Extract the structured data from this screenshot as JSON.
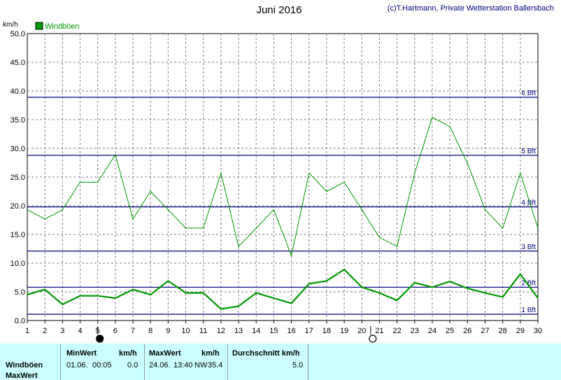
{
  "header": {
    "title": "Juni 2016",
    "copyright": "(c)T.Hartmann, Private Wetterstation Ballersbach"
  },
  "colors": {
    "series": "#009900",
    "bft_lines": "#000080",
    "grid": "#808080",
    "footer_bg": "#ccffff"
  },
  "chart_data": {
    "type": "line",
    "title": "Juni 2016",
    "ylabel": "km/h",
    "xlabel": "",
    "xlim": [
      1,
      30
    ],
    "ylim": [
      0,
      50
    ],
    "x_ticks": [
      1,
      2,
      3,
      4,
      5,
      6,
      7,
      8,
      9,
      10,
      11,
      12,
      13,
      14,
      15,
      16,
      17,
      18,
      19,
      20,
      21,
      22,
      23,
      24,
      25,
      26,
      27,
      28,
      29,
      30
    ],
    "y_ticks": [
      0,
      5,
      10,
      15,
      20,
      25,
      30,
      35,
      40,
      45,
      50
    ],
    "y_tick_labels": [
      "0.0",
      "5.0",
      "10.0",
      "15.0",
      "20.0",
      "25.0",
      "30.0",
      "35.0",
      "40.0",
      "45.0",
      "50.0"
    ],
    "grid": true,
    "legend_position": "top-left",
    "series": [
      {
        "name": "Windböen",
        "kind": "max",
        "x": [
          1,
          2,
          3,
          4,
          5,
          6,
          7,
          8,
          9,
          10,
          11,
          12,
          13,
          14,
          15,
          16,
          17,
          18,
          19,
          20,
          21,
          22,
          23,
          24,
          25,
          26,
          27,
          28,
          29,
          30
        ],
        "values": [
          19.3,
          17.7,
          19.3,
          24.1,
          24.1,
          28.9,
          17.7,
          22.5,
          19.3,
          16.1,
          16.1,
          25.7,
          12.9,
          16.1,
          19.3,
          11.3,
          25.7,
          22.5,
          24.1,
          19.3,
          14.5,
          12.9,
          25.7,
          35.4,
          33.8,
          27.4,
          19.3,
          16.1,
          25.7,
          16.1
        ]
      },
      {
        "name": "Windböen",
        "kind": "mean",
        "x": [
          1,
          2,
          3,
          4,
          5,
          6,
          7,
          8,
          9,
          10,
          11,
          12,
          13,
          14,
          15,
          16,
          17,
          18,
          19,
          20,
          21,
          22,
          23,
          24,
          25,
          26,
          27,
          28,
          29,
          30
        ],
        "values": [
          4.5,
          5.4,
          2.8,
          4.3,
          4.3,
          3.9,
          5.4,
          4.5,
          6.9,
          4.8,
          4.8,
          2.0,
          2.5,
          4.8,
          3.9,
          3.0,
          6.4,
          6.9,
          8.9,
          5.8,
          4.8,
          3.5,
          6.6,
          5.8,
          6.8,
          5.6,
          4.8,
          4.1,
          8.1,
          3.9
        ]
      }
    ],
    "reference_lines": [
      {
        "label": "1 Bft",
        "value": 1.1
      },
      {
        "label": "2 Bft",
        "value": 5.8
      },
      {
        "label": "3 Bft",
        "value": 12.1
      },
      {
        "label": "4 Bft",
        "value": 19.8
      },
      {
        "label": "5 Bft",
        "value": 28.8
      },
      {
        "label": "6 Bft",
        "value": 38.9
      }
    ],
    "moon_phases": [
      {
        "day": 5,
        "phase": "new"
      },
      {
        "day": 20.5,
        "phase": "full"
      }
    ]
  },
  "footer": {
    "row_label": "Windböen",
    "row_label2": "MaxWert",
    "min_header": "MinWert",
    "min_unit": "km/h",
    "min_date": "01.06.",
    "min_time": "00:05",
    "min_value": "0.0",
    "max_header": "MaxWert",
    "max_unit": "km/h",
    "max_date": "24.06.",
    "max_time": "13:40",
    "max_dir": "NW",
    "max_value": "35.4",
    "avg_header": "Durchschnitt km/h",
    "avg_value": "5.0"
  }
}
